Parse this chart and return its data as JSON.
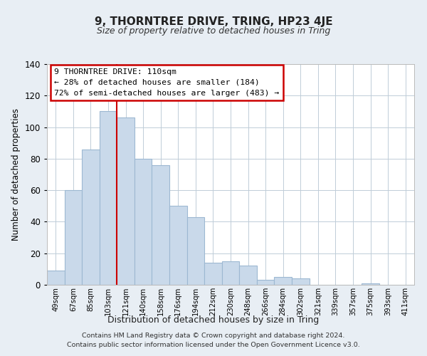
{
  "title": "9, THORNTREE DRIVE, TRING, HP23 4JE",
  "subtitle": "Size of property relative to detached houses in Tring",
  "xlabel": "Distribution of detached houses by size in Tring",
  "ylabel": "Number of detached properties",
  "bar_labels": [
    "49sqm",
    "67sqm",
    "85sqm",
    "103sqm",
    "121sqm",
    "140sqm",
    "158sqm",
    "176sqm",
    "194sqm",
    "212sqm",
    "230sqm",
    "248sqm",
    "266sqm",
    "284sqm",
    "302sqm",
    "321sqm",
    "339sqm",
    "357sqm",
    "375sqm",
    "393sqm",
    "411sqm"
  ],
  "bar_values": [
    9,
    60,
    86,
    110,
    106,
    80,
    76,
    50,
    43,
    14,
    15,
    12,
    3,
    5,
    4,
    0,
    0,
    0,
    1,
    0,
    0
  ],
  "bar_color": "#c9d9ea",
  "bar_edge_color": "#9db8d2",
  "vline_color": "#cc0000",
  "ylim": [
    0,
    140
  ],
  "yticks": [
    0,
    20,
    40,
    60,
    80,
    100,
    120,
    140
  ],
  "annotation_title": "9 THORNTREE DRIVE: 110sqm",
  "annotation_line1": "← 28% of detached houses are smaller (184)",
  "annotation_line2": "72% of semi-detached houses are larger (483) →",
  "annotation_box_color": "#ffffff",
  "annotation_box_edge": "#cc0000",
  "footer_line1": "Contains HM Land Registry data © Crown copyright and database right 2024.",
  "footer_line2": "Contains public sector information licensed under the Open Government Licence v3.0.",
  "background_color": "#e8eef4",
  "plot_bg_color": "#ffffff",
  "grid_color": "#c0cdd8",
  "vline_bar_index": 3
}
